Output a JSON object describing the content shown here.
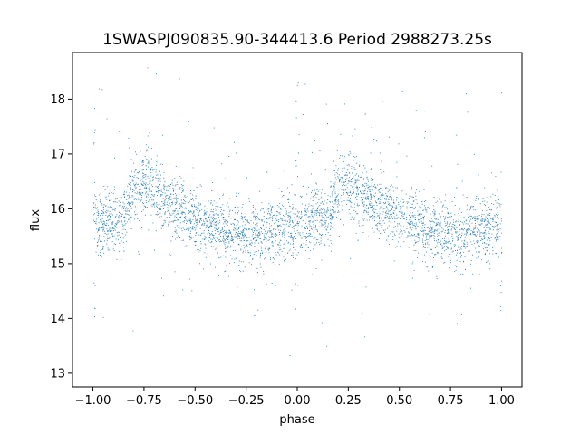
{
  "chart_data": {
    "type": "scatter",
    "title": "1SWASPJ090835.90-344413.6 Period 2988273.25s",
    "xlabel": "phase",
    "ylabel": "flux",
    "xlim": [
      -1.1,
      1.1
    ],
    "ylim": [
      12.75,
      18.85
    ],
    "xticks": [
      -1.0,
      -0.75,
      -0.5,
      -0.25,
      0.0,
      0.25,
      0.5,
      0.75,
      1.0
    ],
    "xtick_labels": [
      "−1.00",
      "−0.75",
      "−0.50",
      "−0.25",
      "0.00",
      "0.25",
      "0.50",
      "0.75",
      "1.00"
    ],
    "yticks": [
      13,
      14,
      15,
      16,
      17,
      18
    ],
    "ytick_labels": [
      "13",
      "14",
      "15",
      "16",
      "17",
      "18"
    ],
    "grid": false,
    "marker_color": "#1f77b4",
    "phase_folded": true,
    "profile": {
      "description_points_phase": [
        0.0,
        0.05,
        0.1,
        0.15,
        0.2,
        0.25,
        0.3,
        0.35,
        0.4,
        0.45,
        0.5,
        0.55,
        0.6,
        0.65,
        0.7,
        0.75,
        0.8,
        0.85,
        0.9,
        0.95,
        1.0
      ],
      "median_flux": [
        15.7,
        15.75,
        15.8,
        15.8,
        16.4,
        16.5,
        16.35,
        16.2,
        16.05,
        15.95,
        15.8,
        15.7,
        15.65,
        15.6,
        15.6,
        15.55,
        15.55,
        15.6,
        15.6,
        15.7,
        15.7
      ]
    }
  }
}
